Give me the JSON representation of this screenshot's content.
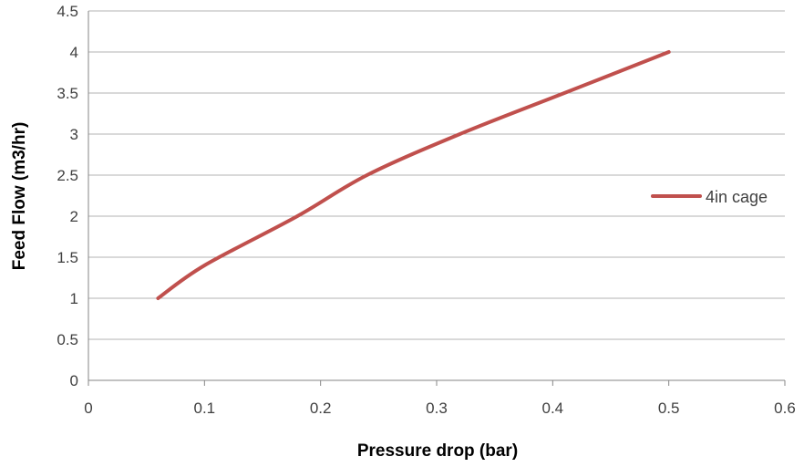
{
  "chart_data": {
    "type": "line",
    "xlabel": "Pressure drop (bar)",
    "ylabel": "Feed Flow (m3/hr)",
    "xlim": [
      0,
      0.6
    ],
    "ylim": [
      0,
      4.5
    ],
    "x_ticks": [
      "0",
      "0.1",
      "0.2",
      "0.3",
      "0.4",
      "0.5",
      "0.6"
    ],
    "y_ticks": [
      "0",
      "0.5",
      "1",
      "1.5",
      "2",
      "2.5",
      "3",
      "3.5",
      "4",
      "4.5"
    ],
    "grid": "horizontal",
    "legend_position": "right",
    "series": [
      {
        "name": "4in cage",
        "color": "#c0504d",
        "x": [
          0.06,
          0.1,
          0.18,
          0.24,
          0.32,
          0.41,
          0.5
        ],
        "y": [
          1.0,
          1.4,
          2.0,
          2.5,
          3.0,
          3.5,
          4.0
        ]
      }
    ]
  }
}
